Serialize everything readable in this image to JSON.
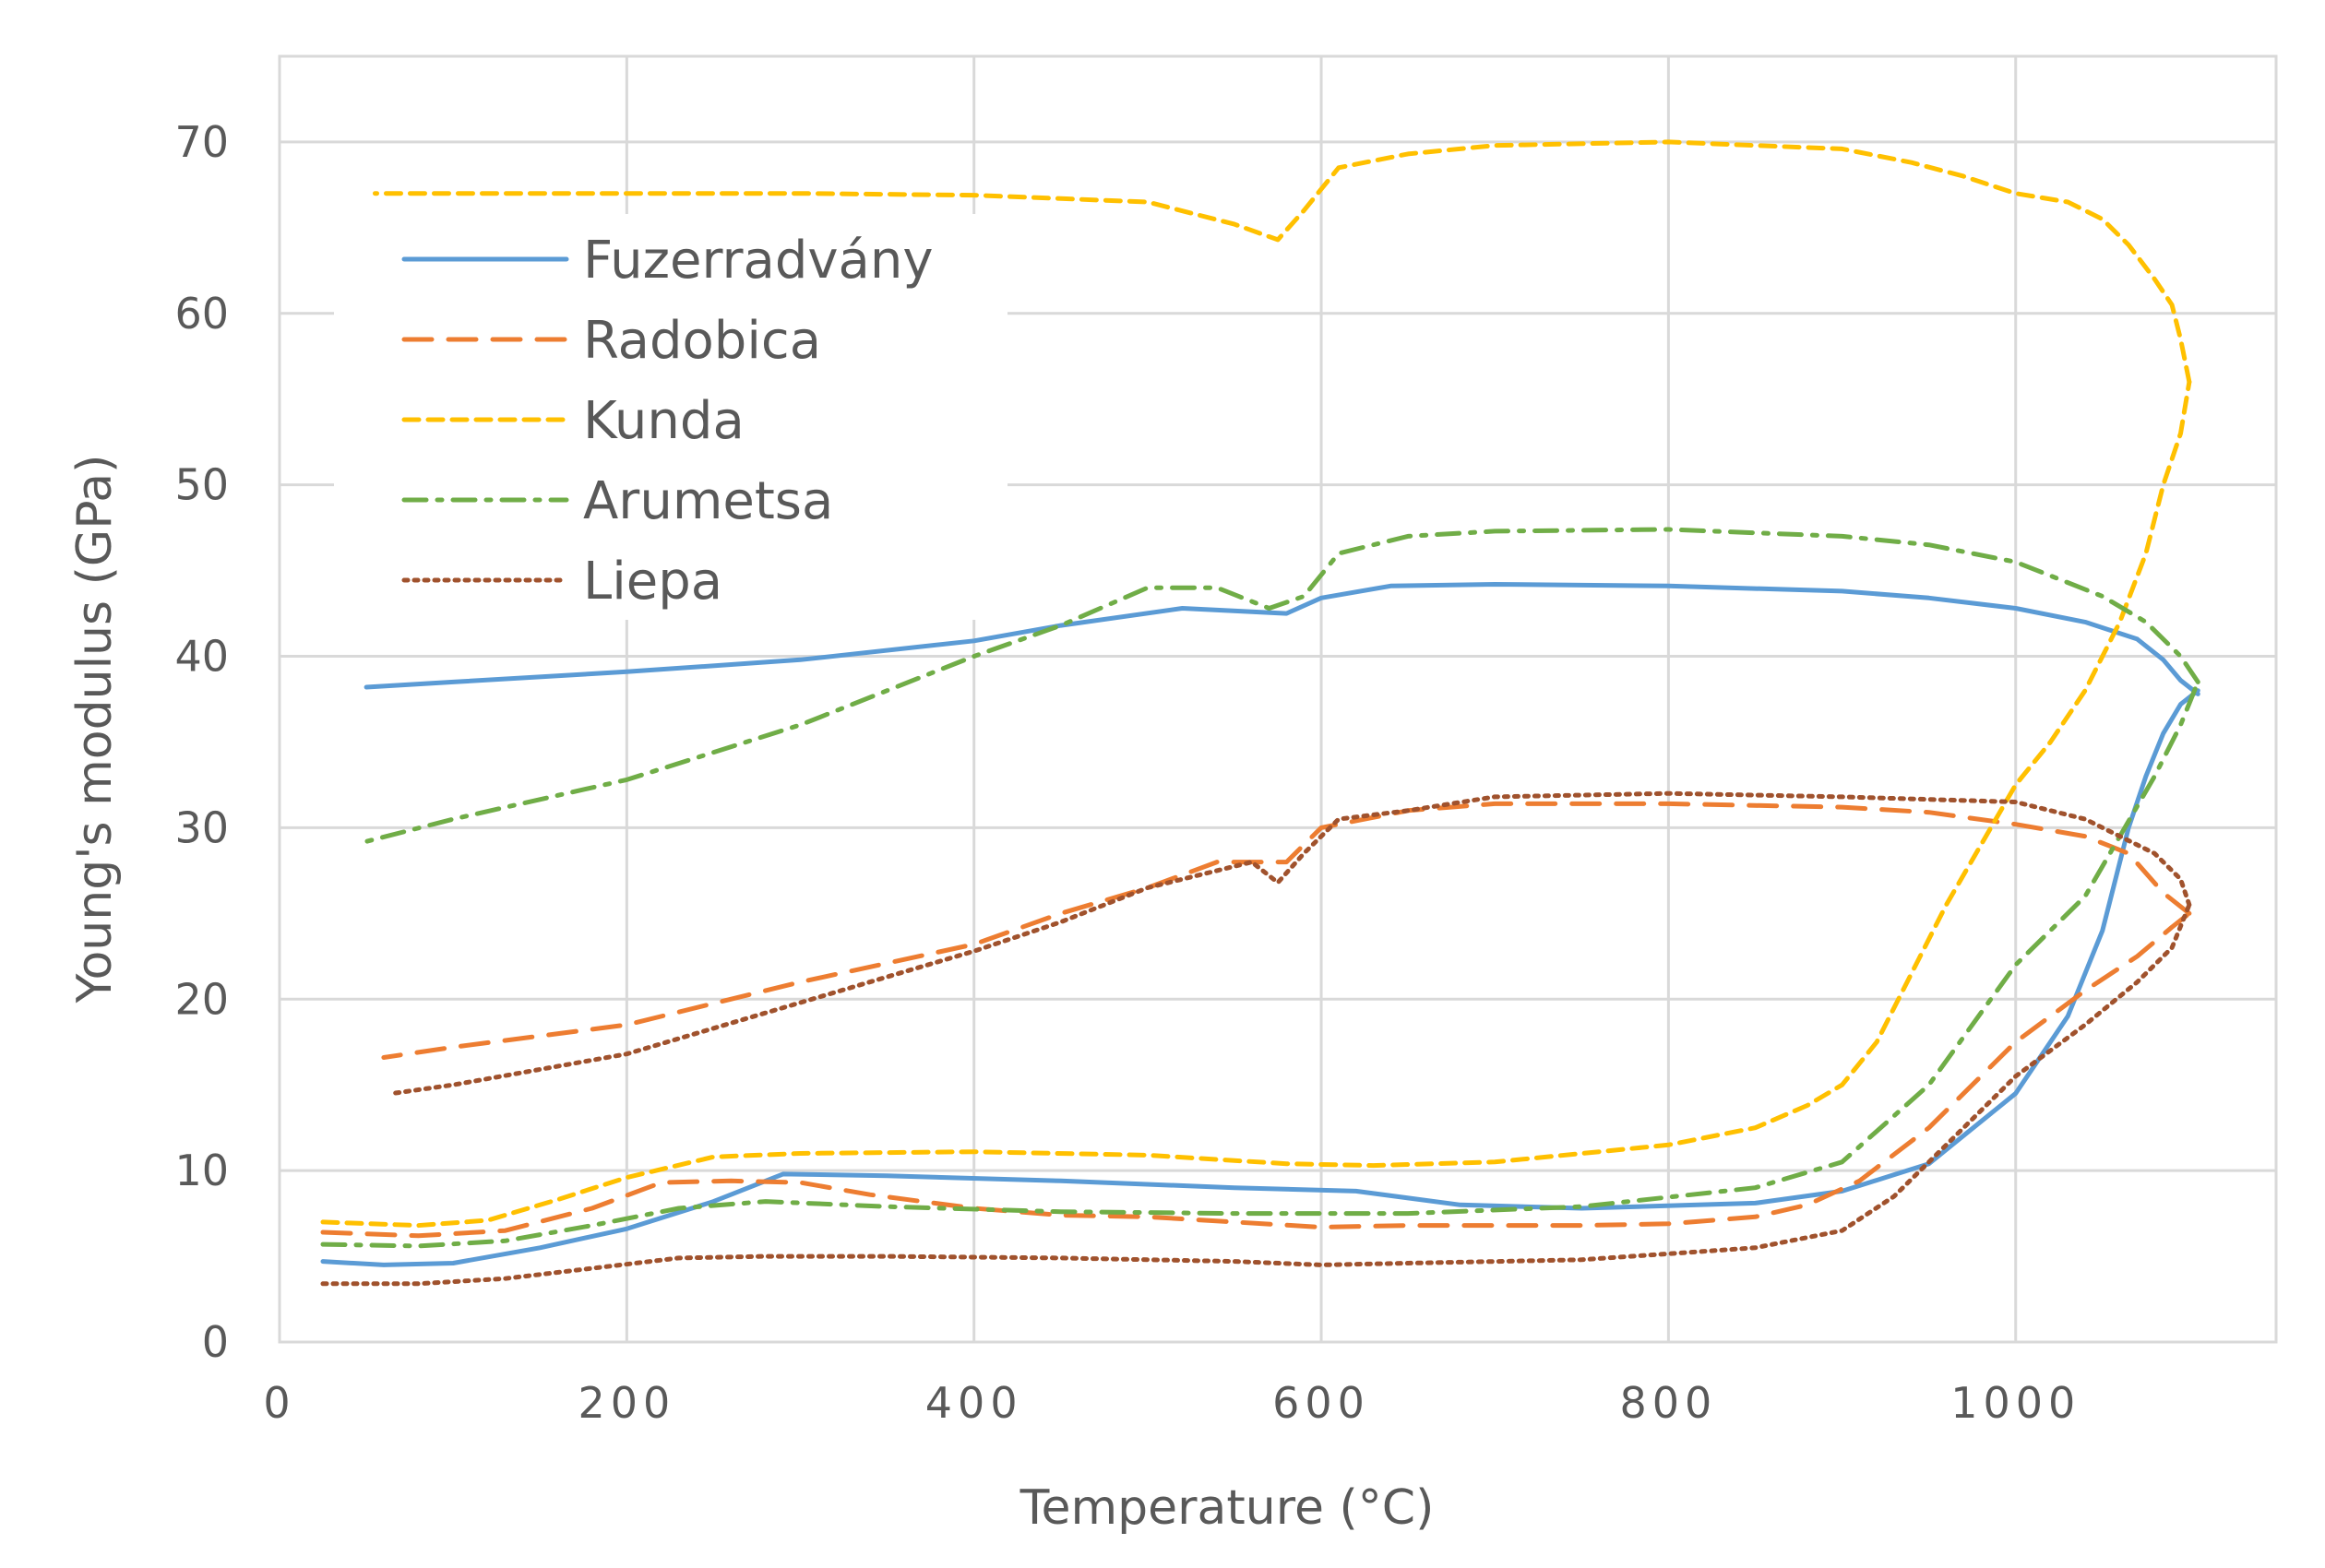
{
  "chart_data": {
    "type": "line",
    "title": "",
    "xlabel": "Temperature (°C)",
    "ylabel": "Young's modulus (GPa)",
    "xlim": [
      0,
      1150
    ],
    "ylim": [
      0,
      75
    ],
    "xticks": [
      0,
      200,
      400,
      600,
      800,
      1000
    ],
    "yticks": [
      0,
      10,
      20,
      30,
      40,
      50,
      60,
      70
    ],
    "xtick_labels": [
      "0",
      "200",
      "400",
      "600",
      "800",
      "1000"
    ],
    "ytick_labels": [
      "0",
      "10",
      "20",
      "30",
      "40",
      "50",
      "60",
      "70"
    ],
    "grid": true,
    "legend_position": "upper-left",
    "series": [
      {
        "name": "Fuzerradvány",
        "color": "#5b9bd5",
        "dash": "solid",
        "heating": [
          [
            25,
            4.7
          ],
          [
            60,
            4.5
          ],
          [
            100,
            4.6
          ],
          [
            150,
            5.5
          ],
          [
            200,
            6.6
          ],
          [
            250,
            8.2
          ],
          [
            290,
            9.8
          ],
          [
            350,
            9.7
          ],
          [
            450,
            9.4
          ],
          [
            550,
            9.0
          ],
          [
            620,
            8.8
          ],
          [
            680,
            8.0
          ],
          [
            750,
            7.8
          ],
          [
            850,
            8.1
          ],
          [
            900,
            8.8
          ],
          [
            950,
            10.4
          ],
          [
            1000,
            14.5
          ],
          [
            1030,
            19.0
          ],
          [
            1050,
            24.0
          ],
          [
            1065,
            30.0
          ],
          [
            1075,
            33.0
          ],
          [
            1085,
            35.5
          ],
          [
            1095,
            37.2
          ],
          [
            1105,
            38.0
          ]
        ],
        "cooling": [
          [
            1105,
            37.8
          ],
          [
            1095,
            38.6
          ],
          [
            1085,
            39.8
          ],
          [
            1070,
            41.0
          ],
          [
            1040,
            42.0
          ],
          [
            1000,
            42.8
          ],
          [
            950,
            43.4
          ],
          [
            900,
            43.8
          ],
          [
            800,
            44.1
          ],
          [
            700,
            44.2
          ],
          [
            640,
            44.1
          ],
          [
            600,
            43.4
          ],
          [
            580,
            42.5
          ],
          [
            560,
            42.6
          ],
          [
            520,
            42.8
          ],
          [
            450,
            41.8
          ],
          [
            400,
            40.9
          ],
          [
            300,
            39.8
          ],
          [
            200,
            39.1
          ],
          [
            100,
            38.5
          ],
          [
            50,
            38.2
          ]
        ]
      },
      {
        "name": "Radobica",
        "color": "#ed7d31",
        "dash": "long-dash",
        "heating": [
          [
            25,
            6.4
          ],
          [
            80,
            6.2
          ],
          [
            130,
            6.5
          ],
          [
            180,
            7.8
          ],
          [
            220,
            9.3
          ],
          [
            260,
            9.4
          ],
          [
            300,
            9.3
          ],
          [
            340,
            8.6
          ],
          [
            400,
            7.8
          ],
          [
            450,
            7.4
          ],
          [
            500,
            7.3
          ],
          [
            550,
            7.0
          ],
          [
            600,
            6.7
          ],
          [
            650,
            6.8
          ],
          [
            750,
            6.8
          ],
          [
            800,
            6.9
          ],
          [
            850,
            7.3
          ],
          [
            880,
            8.0
          ],
          [
            910,
            9.4
          ],
          [
            950,
            12.5
          ],
          [
            1000,
            17.5
          ],
          [
            1040,
            20.5
          ],
          [
            1070,
            22.5
          ],
          [
            1090,
            24.2
          ],
          [
            1100,
            25.0
          ]
        ],
        "cooling": [
          [
            1100,
            25.0
          ],
          [
            1085,
            26.2
          ],
          [
            1065,
            28.5
          ],
          [
            1040,
            29.5
          ],
          [
            1000,
            30.2
          ],
          [
            950,
            30.9
          ],
          [
            900,
            31.2
          ],
          [
            800,
            31.4
          ],
          [
            700,
            31.4
          ],
          [
            650,
            31.0
          ],
          [
            600,
            30.0
          ],
          [
            580,
            28.0
          ],
          [
            560,
            28.0
          ],
          [
            540,
            28.0
          ],
          [
            500,
            26.5
          ],
          [
            450,
            25.0
          ],
          [
            400,
            23.2
          ],
          [
            300,
            21.0
          ],
          [
            200,
            18.5
          ],
          [
            100,
            17.2
          ],
          [
            60,
            16.6
          ]
        ]
      },
      {
        "name": "Kunda",
        "color": "#ffc000",
        "dash": "short-dash",
        "heating": [
          [
            25,
            7.0
          ],
          [
            80,
            6.8
          ],
          [
            120,
            7.1
          ],
          [
            160,
            8.3
          ],
          [
            200,
            9.6
          ],
          [
            250,
            10.8
          ],
          [
            300,
            11.0
          ],
          [
            400,
            11.1
          ],
          [
            500,
            10.9
          ],
          [
            580,
            10.4
          ],
          [
            630,
            10.3
          ],
          [
            700,
            10.5
          ],
          [
            800,
            11.5
          ],
          [
            850,
            12.5
          ],
          [
            880,
            13.8
          ],
          [
            900,
            15.0
          ],
          [
            920,
            17.5
          ],
          [
            940,
            21.5
          ],
          [
            960,
            25.5
          ],
          [
            980,
            29.0
          ],
          [
            1000,
            32.5
          ],
          [
            1020,
            35.0
          ],
          [
            1040,
            38.0
          ],
          [
            1060,
            42.0
          ],
          [
            1075,
            46.0
          ],
          [
            1085,
            50.0
          ],
          [
            1095,
            53.0
          ],
          [
            1100,
            56.0
          ]
        ],
        "cooling": [
          [
            1100,
            56.0
          ],
          [
            1095,
            58.5
          ],
          [
            1090,
            60.5
          ],
          [
            1080,
            62.0
          ],
          [
            1065,
            64.0
          ],
          [
            1050,
            65.5
          ],
          [
            1030,
            66.5
          ],
          [
            1000,
            67.0
          ],
          [
            970,
            68.0
          ],
          [
            940,
            68.8
          ],
          [
            900,
            69.6
          ],
          [
            850,
            69.8
          ],
          [
            800,
            70.0
          ],
          [
            700,
            69.8
          ],
          [
            650,
            69.3
          ],
          [
            610,
            68.5
          ],
          [
            590,
            66.0
          ],
          [
            575,
            64.3
          ],
          [
            550,
            65.2
          ],
          [
            500,
            66.5
          ],
          [
            400,
            66.9
          ],
          [
            300,
            67.0
          ],
          [
            200,
            67.0
          ],
          [
            100,
            67.0
          ],
          [
            55,
            67.0
          ]
        ]
      },
      {
        "name": "Arumetsa",
        "color": "#70ad47",
        "dash": "dash-dot",
        "heating": [
          [
            25,
            5.7
          ],
          [
            80,
            5.6
          ],
          [
            130,
            5.9
          ],
          [
            180,
            6.8
          ],
          [
            230,
            7.8
          ],
          [
            280,
            8.2
          ],
          [
            350,
            7.9
          ],
          [
            450,
            7.6
          ],
          [
            550,
            7.5
          ],
          [
            650,
            7.5
          ],
          [
            750,
            7.9
          ],
          [
            850,
            9.0
          ],
          [
            900,
            10.5
          ],
          [
            950,
            15.0
          ],
          [
            1000,
            22.0
          ],
          [
            1040,
            26.0
          ],
          [
            1060,
            29.5
          ],
          [
            1080,
            33.0
          ],
          [
            1095,
            36.0
          ],
          [
            1105,
            38.5
          ]
        ],
        "cooling": [
          [
            1105,
            38.5
          ],
          [
            1095,
            40.0
          ],
          [
            1075,
            42.0
          ],
          [
            1050,
            43.5
          ],
          [
            1000,
            45.5
          ],
          [
            950,
            46.5
          ],
          [
            900,
            47.0
          ],
          [
            800,
            47.4
          ],
          [
            700,
            47.3
          ],
          [
            650,
            47.0
          ],
          [
            610,
            46.0
          ],
          [
            590,
            43.5
          ],
          [
            570,
            42.8
          ],
          [
            540,
            44.0
          ],
          [
            500,
            44.0
          ],
          [
            450,
            41.8
          ],
          [
            400,
            40.0
          ],
          [
            300,
            36.0
          ],
          [
            200,
            32.8
          ],
          [
            100,
            30.5
          ],
          [
            50,
            29.2
          ]
        ]
      },
      {
        "name": "Liepa",
        "color": "#a0522d",
        "dash": "dotted",
        "heating": [
          [
            25,
            3.4
          ],
          [
            80,
            3.4
          ],
          [
            130,
            3.7
          ],
          [
            180,
            4.3
          ],
          [
            230,
            4.9
          ],
          [
            280,
            5.0
          ],
          [
            350,
            5.0
          ],
          [
            450,
            4.9
          ],
          [
            550,
            4.7
          ],
          [
            600,
            4.5
          ],
          [
            650,
            4.6
          ],
          [
            750,
            4.8
          ],
          [
            850,
            5.5
          ],
          [
            900,
            6.5
          ],
          [
            930,
            8.5
          ],
          [
            960,
            11.5
          ],
          [
            1000,
            15.5
          ],
          [
            1040,
            18.5
          ],
          [
            1070,
            21.0
          ],
          [
            1090,
            23.0
          ],
          [
            1100,
            25.5
          ]
        ],
        "cooling": [
          [
            1100,
            25.5
          ],
          [
            1095,
            27.0
          ],
          [
            1080,
            28.5
          ],
          [
            1060,
            29.5
          ],
          [
            1040,
            30.5
          ],
          [
            1000,
            31.5
          ],
          [
            900,
            31.8
          ],
          [
            800,
            32.0
          ],
          [
            700,
            31.8
          ],
          [
            650,
            31.0
          ],
          [
            610,
            30.5
          ],
          [
            590,
            28.5
          ],
          [
            575,
            26.8
          ],
          [
            560,
            28.0
          ],
          [
            500,
            26.5
          ],
          [
            450,
            24.5
          ],
          [
            400,
            22.8
          ],
          [
            300,
            19.8
          ],
          [
            200,
            16.8
          ],
          [
            100,
            15.0
          ],
          [
            65,
            14.5
          ]
        ]
      }
    ]
  }
}
